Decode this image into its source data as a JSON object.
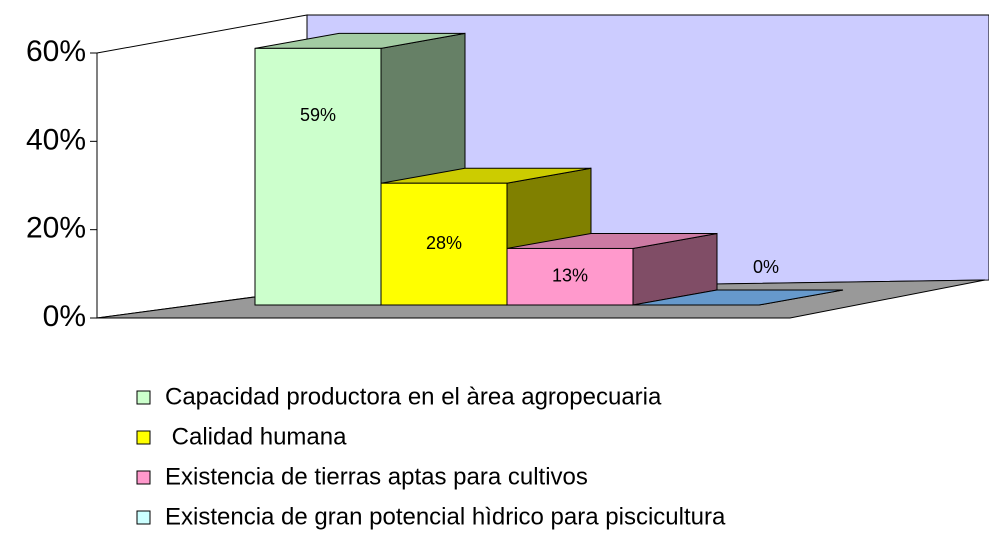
{
  "chart_data": {
    "type": "bar3d",
    "series": [
      {
        "name": "Capacidad productora en el àrea agropecuaria",
        "color": "#ccffcc",
        "values": [
          59
        ],
        "value_labels": [
          "59%"
        ]
      },
      {
        "name": " Calidad humana",
        "color": "#ffff00",
        "values": [
          28
        ],
        "value_labels": [
          "28%"
        ]
      },
      {
        "name": "Existencia de tierras aptas para cultivos",
        "color": "#ff99cc",
        "values": [
          13
        ],
        "value_labels": [
          "13%"
        ]
      },
      {
        "name": "Existencia de gran potencial hìdrico para piscicultura",
        "color": "#ccffff",
        "values": [
          0
        ],
        "value_labels": [
          "0%"
        ]
      }
    ],
    "ylim": [
      0,
      60
    ],
    "yticks": [
      {
        "value": 0,
        "label": "0%"
      },
      {
        "value": 20,
        "label": "20%"
      },
      {
        "value": 40,
        "label": "40%"
      },
      {
        "value": 60,
        "label": "60%"
      }
    ],
    "grid": false,
    "legend": "bottom",
    "wall_color": "#ccccff",
    "floor_color": "#999999"
  }
}
